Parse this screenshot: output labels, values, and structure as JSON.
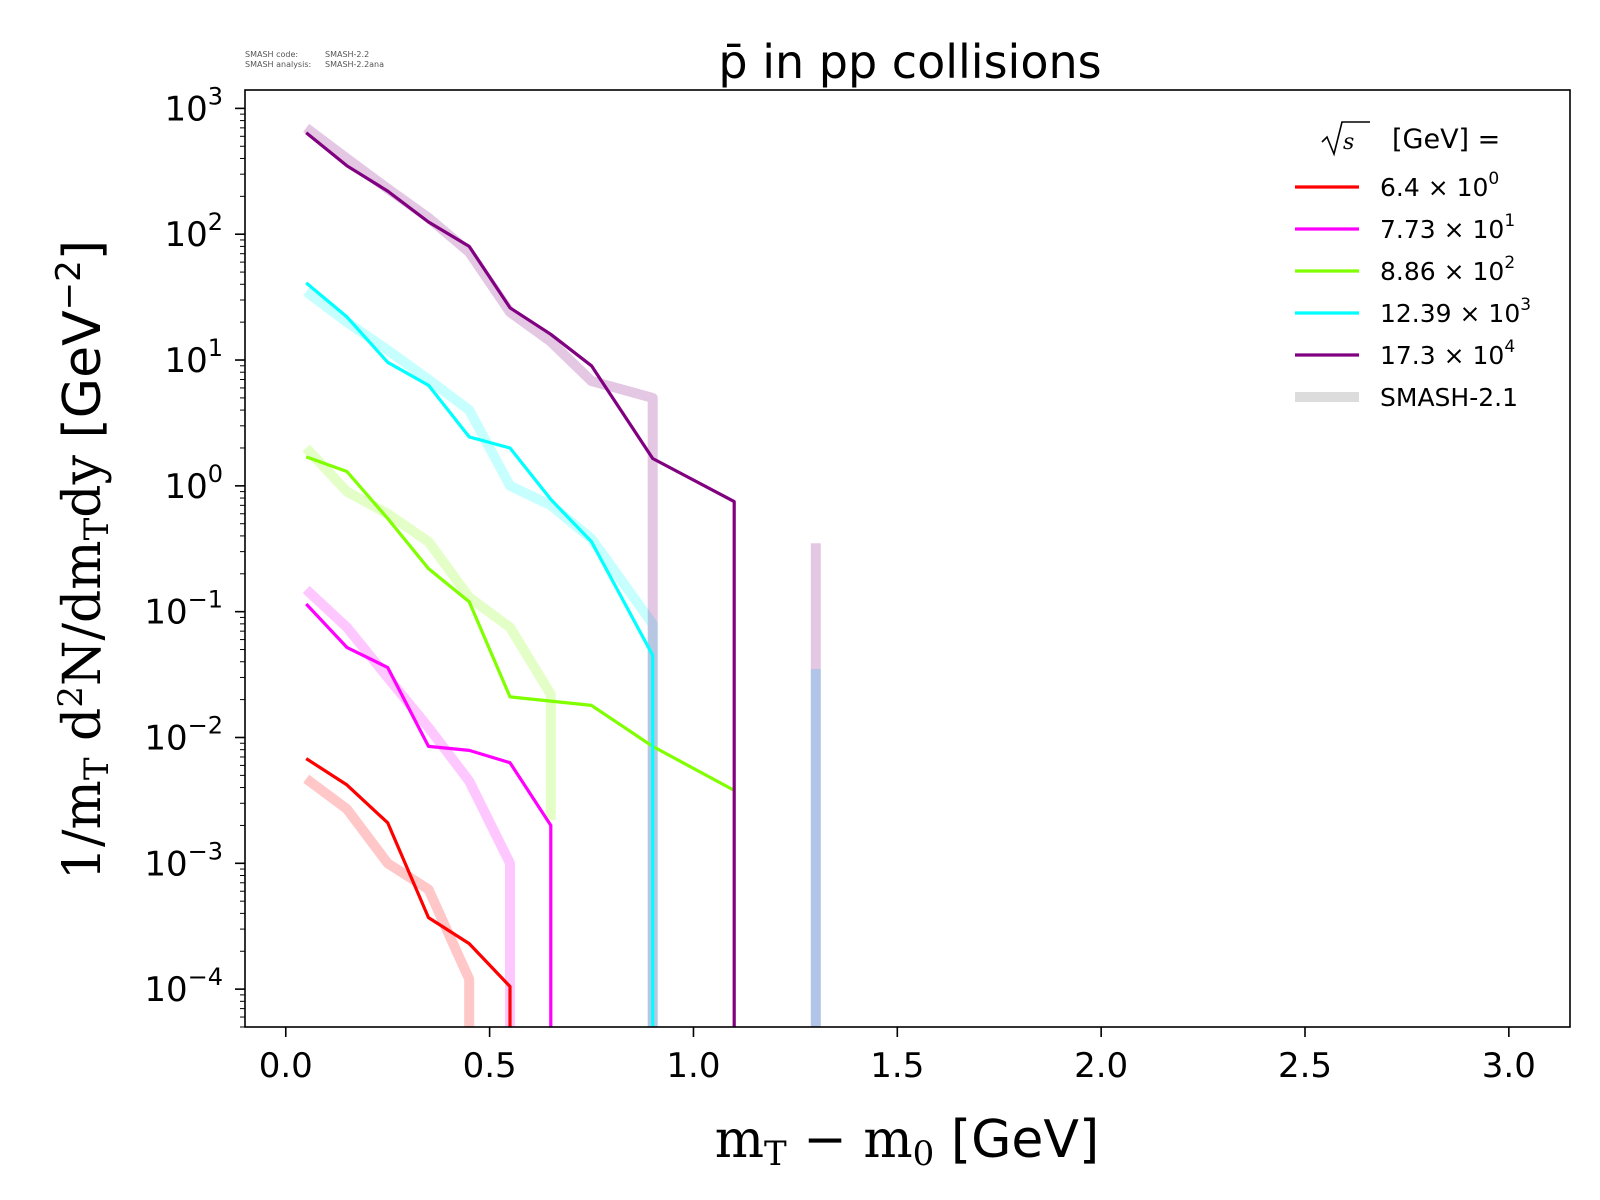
{
  "chart_data": {
    "type": "line",
    "title": "p̄ in pp collisions",
    "code_info": [
      {
        "label": "SMASH code:",
        "value": "SMASH-2.2"
      },
      {
        "label": "SMASH analysis:",
        "value": "SMASH-2.2ana"
      }
    ],
    "xlabel": "m_T − m_0 [GeV]",
    "ylabel": "1/m_T d²N/dm_T dy [GeV⁻²]",
    "xlim": [
      -0.1,
      3.15
    ],
    "ylim": [
      5e-05,
      1400
    ],
    "y_scale": "log",
    "x_ticks": [
      0.0,
      0.5,
      1.0,
      1.5,
      2.0,
      2.5,
      3.0
    ],
    "x_tick_labels": [
      "0.0",
      "0.5",
      "1.0",
      "1.5",
      "2.0",
      "2.5",
      "3.0"
    ],
    "y_tick_exponents": [
      -4,
      -3,
      -2,
      -1,
      0,
      1,
      2,
      3
    ],
    "grid": false,
    "legend": {
      "placement": "top-right",
      "title": "[GeV] =",
      "entries": [
        {
          "mantissa": "6.4",
          "exp": "0"
        },
        {
          "mantissa": "7.73",
          "exp": "1"
        },
        {
          "mantissa": "8.86",
          "exp": "2"
        },
        {
          "mantissa": "12.39",
          "exp": "3"
        },
        {
          "mantissa": "17.3",
          "exp": "4"
        },
        {
          "label": "SMASH-2.1"
        }
      ]
    },
    "series": [
      {
        "name": "6.4 × 10^0",
        "color": "#ff0000",
        "x": [
          0.05,
          0.15,
          0.25,
          0.35,
          0.45,
          0.55,
          0.55
        ],
        "y": [
          0.0068,
          0.0042,
          0.0021,
          0.00037,
          0.00023,
          0.000105,
          1e-05
        ]
      },
      {
        "name": "7.73 × 10^1",
        "color": "#ff00ff",
        "x": [
          0.05,
          0.15,
          0.25,
          0.35,
          0.45,
          0.55,
          0.65,
          0.65
        ],
        "y": [
          0.115,
          0.052,
          0.036,
          0.0085,
          0.0079,
          0.0063,
          0.002,
          1e-05
        ]
      },
      {
        "name": "8.86 × 10^2",
        "color": "#7fff00",
        "x": [
          0.05,
          0.15,
          0.25,
          0.35,
          0.45,
          0.55,
          0.75,
          0.9,
          1.1
        ],
        "y": [
          1.7,
          1.3,
          0.55,
          0.22,
          0.12,
          0.021,
          0.018,
          0.0085,
          0.0038
        ]
      },
      {
        "name": "12.39 × 10^3",
        "color": "#00ffff",
        "x": [
          0.05,
          0.15,
          0.25,
          0.35,
          0.45,
          0.55,
          0.65,
          0.75,
          0.9,
          0.9
        ],
        "y": [
          41,
          22,
          9.6,
          6.3,
          2.45,
          2.0,
          0.78,
          0.36,
          0.045,
          1e-05
        ]
      },
      {
        "name": "17.3 × 10^4",
        "color": "#800080",
        "x": [
          0.05,
          0.15,
          0.25,
          0.35,
          0.45,
          0.55,
          0.65,
          0.75,
          0.9,
          1.1,
          1.1
        ],
        "y": [
          640,
          350,
          220,
          125,
          80,
          26,
          16,
          9,
          1.65,
          0.75,
          1e-05
        ]
      }
    ],
    "reference_series": [
      {
        "name": "SMASH-2.1",
        "color": "#ff0000",
        "x": [
          0.05,
          0.15,
          0.25,
          0.35,
          0.45,
          0.45
        ],
        "y": [
          0.0047,
          0.0027,
          0.001,
          0.00062,
          0.00012,
          1e-05
        ]
      },
      {
        "name": "SMASH-2.1",
        "color": "#ff00ff",
        "x": [
          0.05,
          0.15,
          0.25,
          0.35,
          0.45,
          0.55,
          0.55
        ],
        "y": [
          0.15,
          0.075,
          0.03,
          0.012,
          0.0045,
          0.001,
          1e-05
        ]
      },
      {
        "name": "SMASH-2.1",
        "color": "#7fff00",
        "x": [
          0.05,
          0.15,
          0.25,
          0.35,
          0.45,
          0.55,
          0.65,
          0.65
        ],
        "y": [
          2.0,
          0.9,
          0.6,
          0.36,
          0.13,
          0.075,
          0.022,
          0.0022
        ]
      },
      {
        "name": "SMASH-2.1",
        "color": "#00ffff",
        "x": [
          0.05,
          0.15,
          0.25,
          0.35,
          0.45,
          0.55,
          0.65,
          0.75,
          0.9,
          0.9
        ],
        "y": [
          35,
          20,
          12,
          7,
          4,
          1.0,
          0.7,
          0.38,
          0.08,
          1e-05
        ]
      },
      {
        "name": "SMASH-2.1",
        "color": "#800080",
        "x": [
          0.05,
          0.15,
          0.25,
          0.35,
          0.45,
          0.55,
          0.65,
          0.75,
          0.9,
          0.9
        ],
        "y": [
          700,
          400,
          230,
          135,
          72,
          24,
          14,
          6.8,
          5.0,
          1e-05
        ]
      },
      {
        "name": "SMASH-2.1",
        "color": "#800080",
        "x": [
          1.3,
          1.3
        ],
        "y": [
          0.35,
          1e-05
        ]
      },
      {
        "name": "SMASH-2.1",
        "color": "#00bfff",
        "x": [
          1.3,
          1.3
        ],
        "y": [
          0.035,
          1e-05
        ]
      }
    ]
  }
}
